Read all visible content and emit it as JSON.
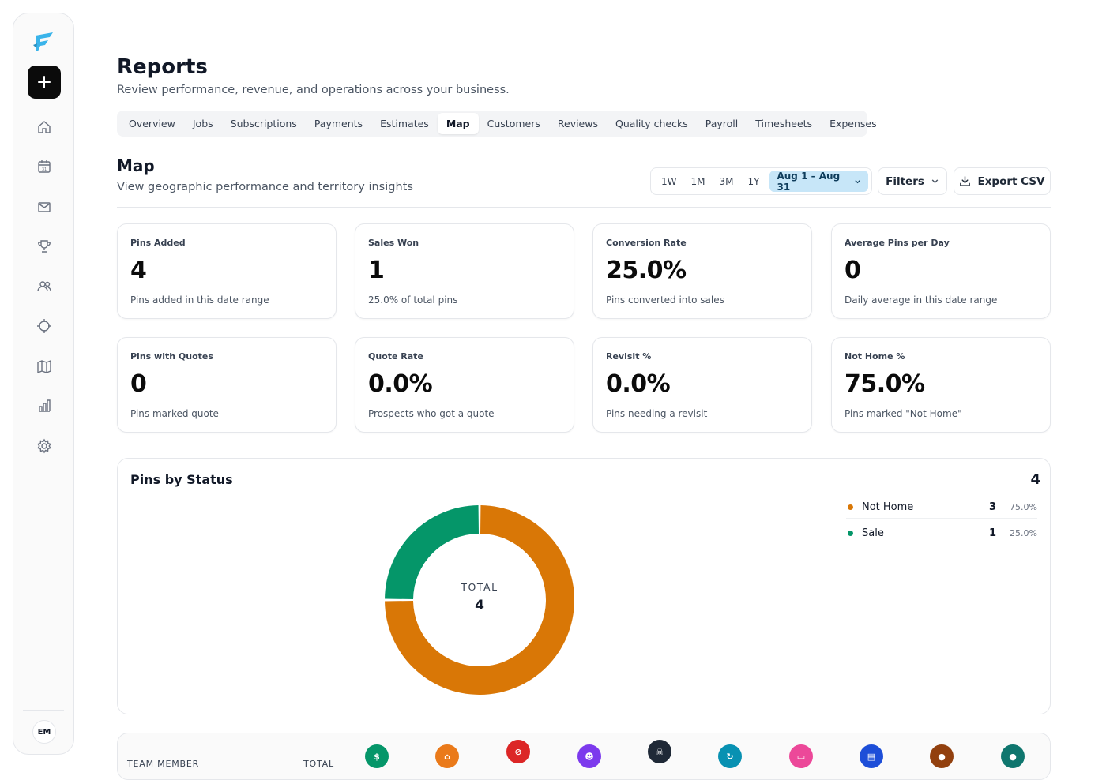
{
  "sidebar": {
    "nav": [
      "home-icon",
      "calendar-icon",
      "mail-icon",
      "trophy-icon",
      "users-icon",
      "crosshair-icon",
      "map-icon",
      "bar-chart-icon",
      "gear-icon"
    ],
    "avatar_initials": "EM"
  },
  "header": {
    "title": "Reports",
    "subtitle": "Review performance, revenue, and operations across your business."
  },
  "tabs": [
    {
      "label": "Overview",
      "active": false
    },
    {
      "label": "Jobs",
      "active": false
    },
    {
      "label": "Subscriptions",
      "active": false
    },
    {
      "label": "Payments",
      "active": false
    },
    {
      "label": "Estimates",
      "active": false
    },
    {
      "label": "Map",
      "active": true
    },
    {
      "label": "Customers",
      "active": false
    },
    {
      "label": "Reviews",
      "active": false
    },
    {
      "label": "Quality checks",
      "active": false
    },
    {
      "label": "Payroll",
      "active": false
    },
    {
      "label": "Timesheets",
      "active": false
    },
    {
      "label": "Expenses",
      "active": false
    }
  ],
  "section": {
    "title": "Map",
    "subtitle": "View geographic performance and territory insights"
  },
  "controls": {
    "ranges": [
      "1W",
      "1M",
      "3M",
      "1Y"
    ],
    "date_range": "Aug 1 – Aug 31",
    "filters_label": "Filters",
    "export_label": "Export CSV"
  },
  "stats": [
    {
      "label": "Pins Added",
      "value": "4",
      "sub": "Pins added in this date range"
    },
    {
      "label": "Sales Won",
      "value": "1",
      "sub": "25.0% of total pins"
    },
    {
      "label": "Conversion Rate",
      "value": "25.0%",
      "sub": "Pins converted into sales"
    },
    {
      "label": "Average Pins per Day",
      "value": "0",
      "sub": "Daily average in this date range"
    },
    {
      "label": "Pins with Quotes",
      "value": "0",
      "sub": "Pins marked quote"
    },
    {
      "label": "Quote Rate",
      "value": "0.0%",
      "sub": "Prospects who got a quote"
    },
    {
      "label": "Revisit %",
      "value": "0.0%",
      "sub": "Pins needing a revisit"
    },
    {
      "label": "Not Home %",
      "value": "75.0%",
      "sub": "Pins marked \"Not Home\""
    }
  ],
  "pins_chart": {
    "title": "Pins by Status",
    "total": "4",
    "center_label": "TOTAL",
    "center_value": "4",
    "legend": [
      {
        "name": "Not Home",
        "count": "3",
        "pct": "75.0%",
        "color": "#d97706"
      },
      {
        "name": "Sale",
        "count": "1",
        "pct": "25.0%",
        "color": "#059669"
      }
    ]
  },
  "chart_data": {
    "type": "pie",
    "title": "Pins by Status",
    "categories": [
      "Not Home",
      "Sale"
    ],
    "values": [
      3,
      1
    ],
    "colors": [
      "#d97706",
      "#059669"
    ],
    "donut": true
  },
  "team_table": {
    "col_member": "TEAM MEMBER",
    "col_total": "TOTAL",
    "status_icons": [
      {
        "name": "dollar-icon",
        "glyph": "$",
        "color": "#059669"
      },
      {
        "name": "home-icon",
        "glyph": "⌂",
        "color": "#ea7a1a"
      },
      {
        "name": "ban-icon",
        "glyph": "⊘",
        "color": "#dc2626"
      },
      {
        "name": "user-icon",
        "glyph": "☻",
        "color": "#7c3aed"
      },
      {
        "name": "skull-icon",
        "glyph": "☠",
        "color": "#1f2937"
      },
      {
        "name": "refresh-icon",
        "glyph": "↻",
        "color": "#0891b2"
      },
      {
        "name": "ticket-icon",
        "glyph": "▭",
        "color": "#ec4899"
      },
      {
        "name": "document-icon",
        "glyph": "▤",
        "color": "#1d4ed8"
      },
      {
        "name": "circle-icon",
        "glyph": "●",
        "color": "#92400e"
      },
      {
        "name": "circle-icon",
        "glyph": "●",
        "color": "#0f766e"
      }
    ]
  }
}
